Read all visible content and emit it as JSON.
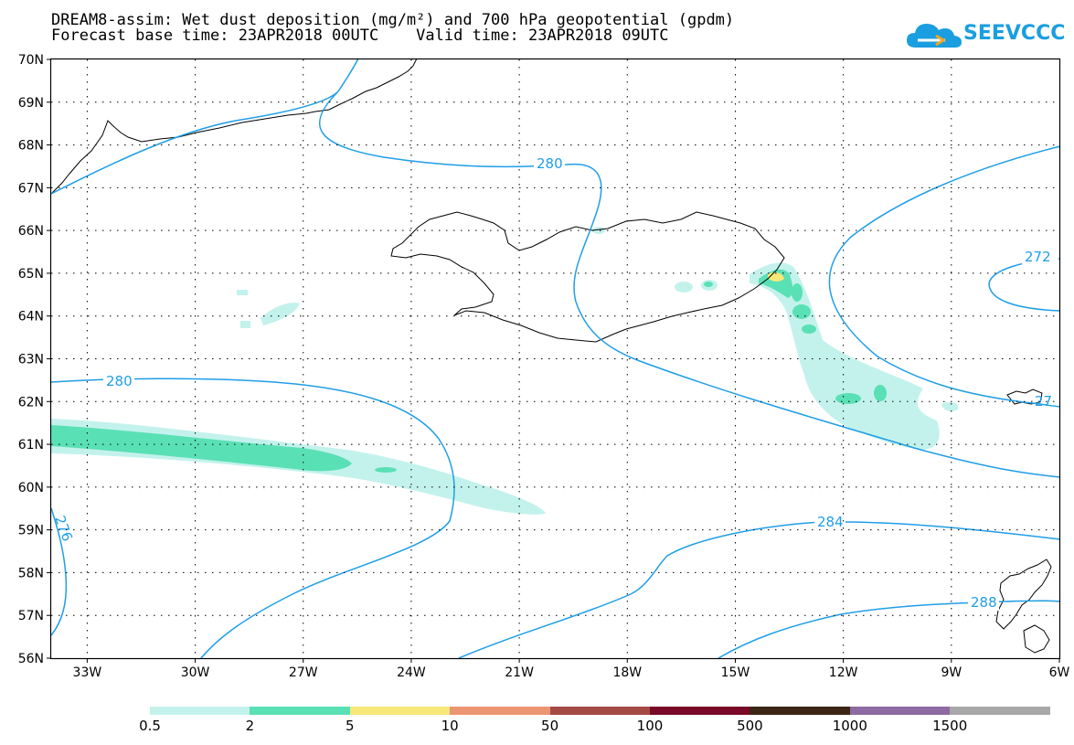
{
  "header": {
    "title_line1": "DREAM8-assim: Wet dust deposition (mg/m²) and 700 hPa geopotential (gpdm)",
    "title_line2": "Forecast base time: 23APR2018 00UTC    Valid time: 23APR2018 09UTC"
  },
  "logo": {
    "text": "SEEVCCC",
    "icon": "cloud-icon",
    "color": "#1a9ee0"
  },
  "map": {
    "lon_range": [
      -34,
      -6
    ],
    "lat_range": [
      56,
      70
    ],
    "lon_ticks": [
      {
        "lon": -33,
        "label": "33W"
      },
      {
        "lon": -30,
        "label": "30W"
      },
      {
        "lon": -27,
        "label": "27W"
      },
      {
        "lon": -24,
        "label": "24W"
      },
      {
        "lon": -21,
        "label": "21W"
      },
      {
        "lon": -18,
        "label": "18W"
      },
      {
        "lon": -15,
        "label": "15W"
      },
      {
        "lon": -12,
        "label": "12W"
      },
      {
        "lon": -9,
        "label": "9W"
      },
      {
        "lon": -6,
        "label": "6W"
      }
    ],
    "lat_ticks": [
      {
        "lat": 70,
        "label": "70N"
      },
      {
        "lat": 69,
        "label": "69N"
      },
      {
        "lat": 68,
        "label": "68N"
      },
      {
        "lat": 67,
        "label": "67N"
      },
      {
        "lat": 66,
        "label": "66N"
      },
      {
        "lat": 65,
        "label": "65N"
      },
      {
        "lat": 64,
        "label": "64N"
      },
      {
        "lat": 63,
        "label": "63N"
      },
      {
        "lat": 62,
        "label": "62N"
      },
      {
        "lat": 61,
        "label": "61N"
      },
      {
        "lat": 60,
        "label": "60N"
      },
      {
        "lat": 59,
        "label": "59N"
      },
      {
        "lat": 58,
        "label": "58N"
      },
      {
        "lat": 57,
        "label": "57N"
      },
      {
        "lat": 56,
        "label": "56N"
      }
    ],
    "contour_color": "#1f9ee6",
    "contour_labels": [
      "280",
      "280",
      "284",
      "288",
      "272",
      "276",
      "27"
    ]
  },
  "legend": {
    "colors": [
      "#c3f2ec",
      "#5ae0b5",
      "#f7e87a",
      "#ec9572",
      "#a44a44",
      "#7a0828",
      "#3b2616",
      "#8e6aa2",
      "#a8a8a8"
    ],
    "labels": [
      "0.5",
      "2",
      "5",
      "10",
      "50",
      "100",
      "500",
      "1000",
      "1500"
    ]
  }
}
